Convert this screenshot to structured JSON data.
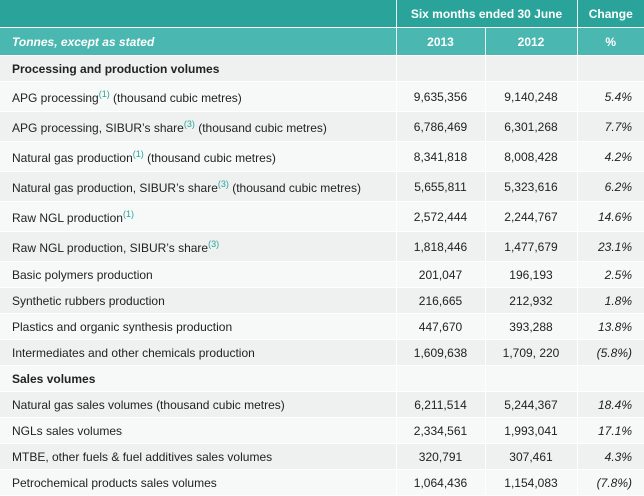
{
  "header": {
    "period": "Six months ended 30 June",
    "change": "Change",
    "unit_label": "Tonnes, except as stated",
    "year_current": "2013",
    "year_prior": "2012",
    "pct": "%"
  },
  "sections": {
    "processing": "Processing and production volumes",
    "sales": "Sales volumes"
  },
  "rows": [
    {
      "label": "APG processing",
      "sup": "(1)",
      "suffix": " (thousand cubic metres)",
      "v2013": "9,635,356",
      "v2012": "9,140,248",
      "change": "5.4%"
    },
    {
      "label": "APG processing, SIBUR’s share",
      "sup": "(3)",
      "suffix": " (thousand cubic metres)",
      "v2013": "6,786,469",
      "v2012": "6,301,268",
      "change": "7.7%"
    },
    {
      "label": "Natural gas production",
      "sup": "(1)",
      "suffix": " (thousand cubic metres)",
      "v2013": "8,341,818",
      "v2012": "8,008,428",
      "change": "4.2%"
    },
    {
      "label": "Natural gas production, SIBUR’s share",
      "sup": "(3)",
      "suffix": " (thousand cubic metres)",
      "v2013": "5,655,811",
      "v2012": "5,323,616",
      "change": "6.2%"
    },
    {
      "label": "Raw NGL production",
      "sup": "(1)",
      "suffix": "",
      "v2013": "2,572,444",
      "v2012": "2,244,767",
      "change": "14.6%"
    },
    {
      "label": "Raw NGL production, SIBUR’s share",
      "sup": "(3)",
      "suffix": "",
      "v2013": "1,818,446",
      "v2012": "1,477,679",
      "change": "23.1%"
    },
    {
      "label": "Basic polymers production",
      "sup": "",
      "suffix": "",
      "v2013": "201,047",
      "v2012": "196,193",
      "change": "2.5%"
    },
    {
      "label": "Synthetic rubbers production",
      "sup": "",
      "suffix": "",
      "v2013": "216,665",
      "v2012": "212,932",
      "change": "1.8%"
    },
    {
      "label": "Plastics and organic synthesis production",
      "sup": "",
      "suffix": "",
      "v2013": "447,670",
      "v2012": "393,288",
      "change": "13.8%"
    },
    {
      "label": "Intermediates and other chemicals production",
      "sup": "",
      "suffix": "",
      "v2013": "1,609,638",
      "v2012": "1,709, 220",
      "change": "(5.8%)"
    },
    {
      "label": "Natural gas sales volumes (thousand cubic metres)",
      "sup": "",
      "suffix": "",
      "v2013": "6,211,514",
      "v2012": "5,244,367",
      "change": "18.4%"
    },
    {
      "label": "NGLs sales volumes",
      "sup": "",
      "suffix": "",
      "v2013": "2,334,561",
      "v2012": "1,993,041",
      "change": "17.1%"
    },
    {
      "label": "MTBE, other fuels & fuel additives sales volumes",
      "sup": "",
      "suffix": "",
      "v2013": "320,791",
      "v2012": "307,461",
      "change": "4.3%"
    },
    {
      "label": "Petrochemical products sales volumes",
      "sup": "",
      "suffix": "",
      "v2013": "1,064,436",
      "v2012": "1,154,083",
      "change": "(7.8%)"
    }
  ]
}
